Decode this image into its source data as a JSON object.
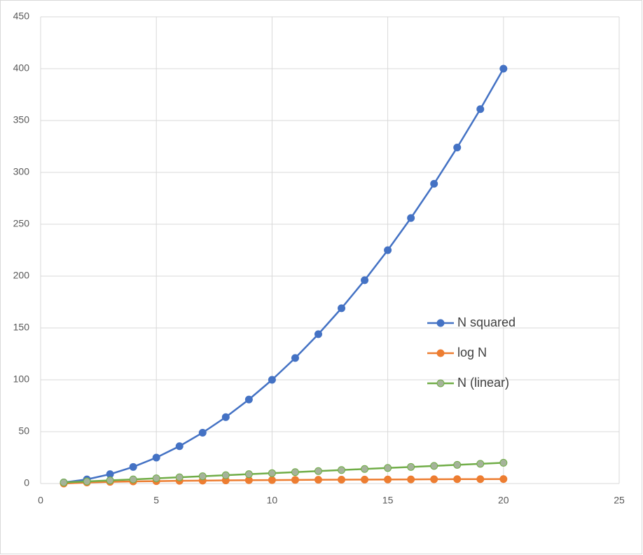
{
  "chart_data": {
    "type": "line",
    "x": [
      1,
      2,
      3,
      4,
      5,
      6,
      7,
      8,
      9,
      10,
      11,
      12,
      13,
      14,
      15,
      16,
      17,
      18,
      19,
      20
    ],
    "series": [
      {
        "name": "N squared",
        "color": "#4472c4",
        "values": [
          1,
          4,
          9,
          16,
          25,
          36,
          49,
          64,
          81,
          100,
          121,
          144,
          169,
          196,
          225,
          256,
          289,
          324,
          361,
          400
        ]
      },
      {
        "name": "log N",
        "color": "#ed7d31",
        "values": [
          0,
          1,
          1.6,
          2,
          2.3,
          2.6,
          2.8,
          3,
          3.2,
          3.3,
          3.5,
          3.6,
          3.7,
          3.8,
          3.9,
          4,
          4.1,
          4.2,
          4.2,
          4.3
        ]
      },
      {
        "name": "N (linear)",
        "color": "#70ad47",
        "marker_color": "#a5b39a",
        "values": [
          1,
          2,
          3,
          4,
          5,
          6,
          7,
          8,
          9,
          10,
          11,
          12,
          13,
          14,
          15,
          16,
          17,
          18,
          19,
          20
        ]
      }
    ],
    "xlim": [
      0,
      25
    ],
    "xticks": [
      0,
      5,
      10,
      15,
      20,
      25
    ],
    "ylim": [
      0,
      450
    ],
    "yticks": [
      0,
      50,
      100,
      150,
      200,
      250,
      300,
      350,
      400,
      450
    ],
    "grid": true,
    "legend": "right"
  }
}
